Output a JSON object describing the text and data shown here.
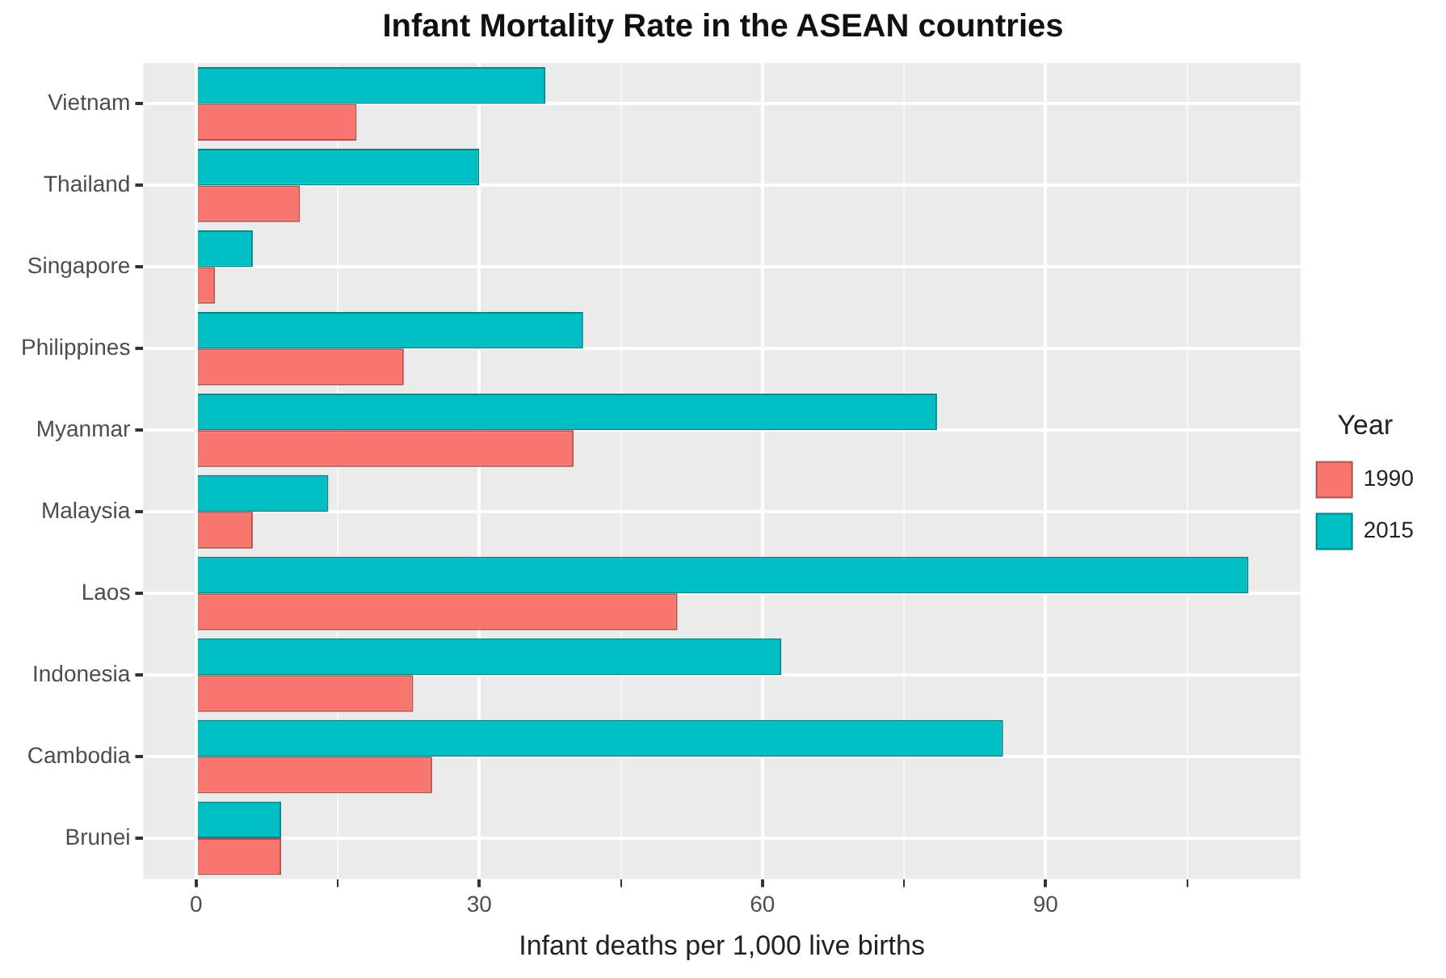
{
  "chart_data": {
    "type": "bar",
    "orientation": "horizontal",
    "title": "Infant Mortality Rate in the ASEAN countries",
    "xlabel": "Infant deaths per 1,000 live births",
    "legend_title": "Year",
    "legend": "right",
    "categories": [
      "Vietnam",
      "Thailand",
      "Singapore",
      "Philippines",
      "Myanmar",
      "Malaysia",
      "Laos",
      "Indonesia",
      "Cambodia",
      "Brunei"
    ],
    "series": [
      {
        "name": "1990",
        "color": "#f8766d",
        "values": [
          17,
          11,
          2,
          22,
          40,
          6,
          51,
          23,
          25,
          9
        ]
      },
      {
        "name": "2015",
        "color": "#00bfc4",
        "values": [
          37,
          30,
          6,
          41,
          78.5,
          14,
          111.5,
          62,
          85.5,
          9
        ]
      }
    ],
    "xlim": [
      -5.6,
      117
    ],
    "xticks": [
      0,
      {
        "value": 15,
        "label": null
      },
      30,
      {
        "value": 45,
        "label": null
      },
      60,
      {
        "value": 75,
        "label": null
      },
      90,
      {
        "value": 105,
        "label": null
      }
    ],
    "grid": true
  }
}
